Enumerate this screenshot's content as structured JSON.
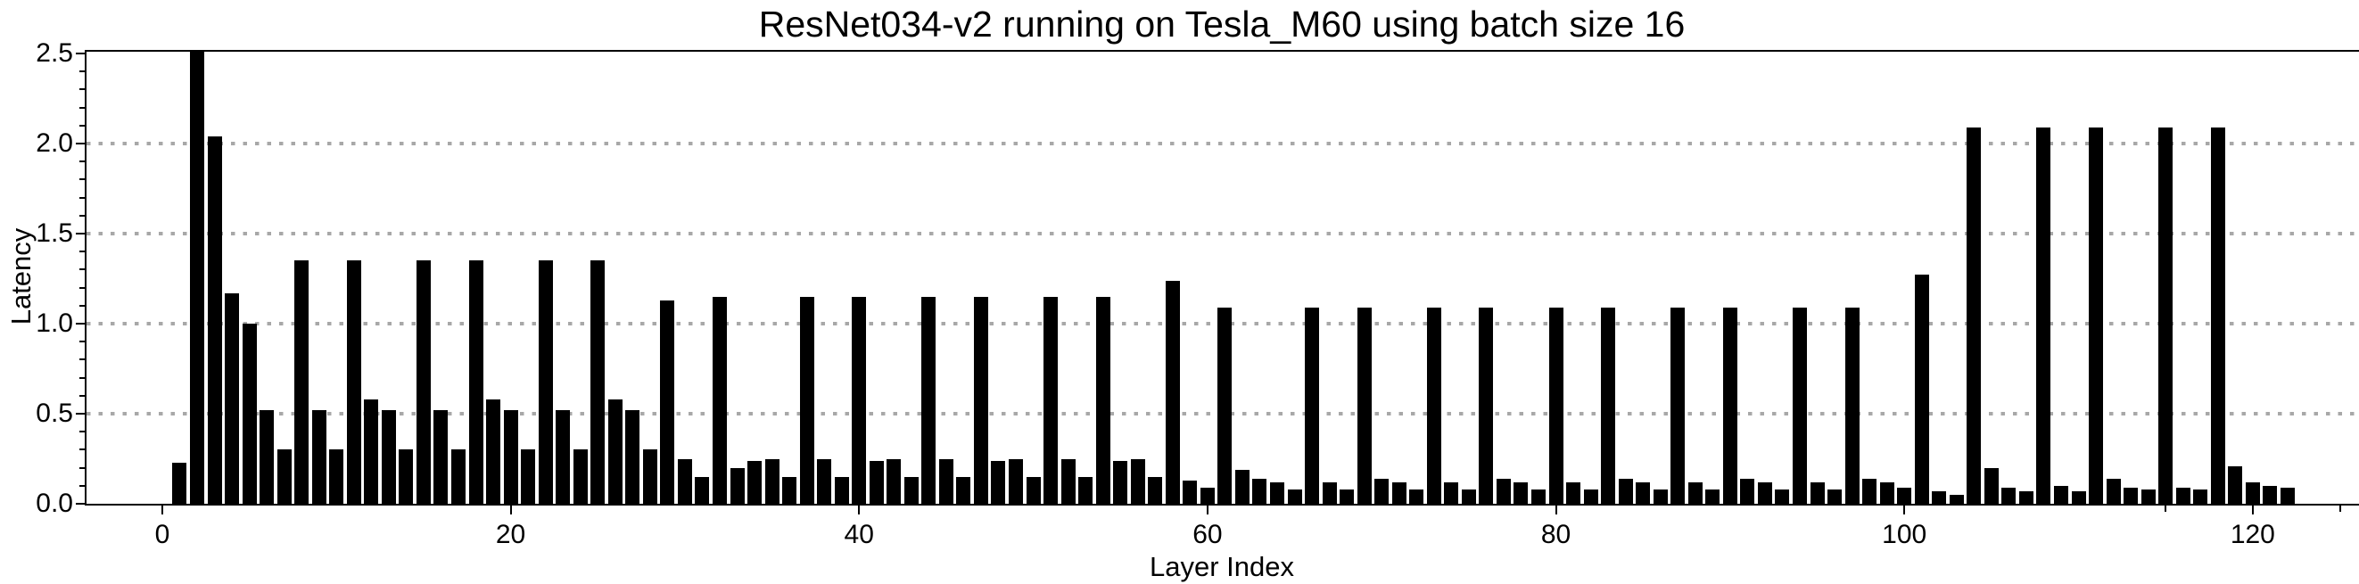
{
  "chart_data": {
    "type": "bar",
    "title": "ResNet034-v2 running on Tesla_M60 using batch size 16",
    "xlabel": "Layer Index",
    "ylabel": "Latency",
    "bar_color": "#000000",
    "grid_color": "#a8a8a8",
    "grid_style": "dotted horizontal",
    "legend_position": "none",
    "xlim": [
      -4.45,
      126.1
    ],
    "ylim": [
      0,
      2.52
    ],
    "xticks": [
      0,
      20,
      40,
      60,
      80,
      100,
      120
    ],
    "xtick_labels": [
      "0",
      "20",
      "40",
      "60",
      "80",
      "100",
      "120"
    ],
    "x_minor_ticks": [
      115,
      125
    ],
    "ytick_labels": [
      "0.0",
      "0.5",
      "1.0",
      "1.5",
      "2.0",
      "2.5"
    ],
    "yticks": [
      0,
      0.5,
      1.0,
      1.5,
      2.0,
      2.5
    ],
    "y_minor_step": 0.1,
    "grid_values": [
      0.5,
      1.0,
      1.5,
      2.0
    ],
    "x_start_index": 1,
    "values": [
      0.23,
      2.54,
      2.04,
      1.17,
      1.0,
      0.52,
      0.3,
      1.35,
      0.52,
      0.3,
      1.35,
      0.58,
      0.52,
      0.3,
      1.35,
      0.52,
      0.3,
      1.35,
      0.58,
      0.52,
      0.3,
      1.35,
      0.52,
      0.3,
      1.35,
      0.58,
      0.52,
      0.3,
      1.13,
      0.25,
      0.15,
      1.15,
      0.2,
      0.24,
      0.25,
      0.15,
      1.15,
      0.25,
      0.15,
      1.15,
      0.24,
      0.25,
      0.15,
      1.15,
      0.25,
      0.15,
      1.15,
      0.24,
      0.25,
      0.15,
      1.15,
      0.25,
      0.15,
      1.15,
      0.24,
      0.25,
      0.15,
      1.24,
      0.13,
      0.09,
      1.09,
      0.19,
      0.14,
      0.12,
      0.08,
      1.09,
      0.12,
      0.08,
      1.09,
      0.14,
      0.12,
      0.08,
      1.09,
      0.12,
      0.08,
      1.09,
      0.14,
      0.12,
      0.08,
      1.09,
      0.12,
      0.08,
      1.09,
      0.14,
      0.12,
      0.08,
      1.09,
      0.12,
      0.08,
      1.09,
      0.14,
      0.12,
      0.08,
      1.09,
      0.12,
      0.08,
      1.09,
      0.14,
      0.12,
      0.09,
      1.27,
      0.07,
      0.05,
      2.09,
      0.2,
      0.09,
      0.07,
      2.09,
      0.1,
      0.07,
      2.09,
      0.14,
      0.09,
      0.08,
      2.09,
      0.09,
      0.08,
      2.09,
      0.21,
      0.12,
      0.1,
      0.09
    ]
  }
}
